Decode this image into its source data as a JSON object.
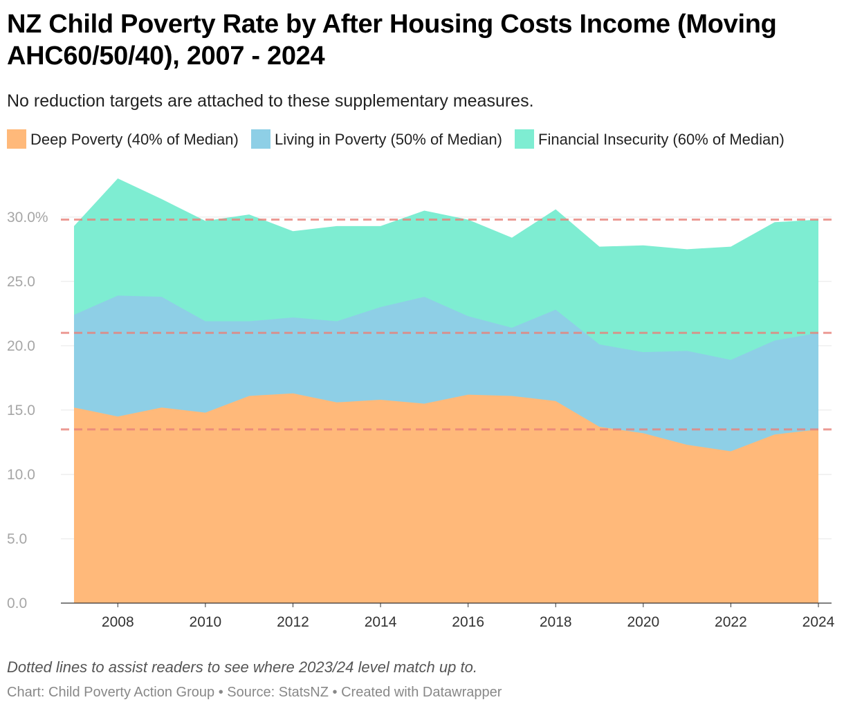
{
  "header": {
    "title": "NZ Child Poverty Rate by After Housing Costs Income (Moving AHC60/50/40), 2007 - 2024",
    "subtitle": "No reduction targets are attached to these supplementary measures."
  },
  "legend": [
    {
      "label": "Deep Poverty (40% of Median)",
      "color": "#ffb97a"
    },
    {
      "label": "Living in Poverty (50% of Median)",
      "color": "#8ecfe6"
    },
    {
      "label": "Financial Insecurity (60% of Median)",
      "color": "#7eedd2"
    }
  ],
  "chart_data": {
    "type": "area",
    "title": "NZ Child Poverty Rate by After Housing Costs Income (Moving AHC60/50/40), 2007 - 2024",
    "subtitle": "No reduction targets are attached to these supplementary measures.",
    "x": [
      2007,
      2008,
      2009,
      2010,
      2011,
      2012,
      2013,
      2014,
      2015,
      2016,
      2017,
      2018,
      2019,
      2020,
      2021,
      2022,
      2023,
      2024
    ],
    "series": [
      {
        "name": "Deep Poverty (40% of Median)",
        "color": "#ffb97a",
        "values": [
          15.2,
          14.5,
          15.2,
          14.8,
          16.1,
          16.3,
          15.6,
          15.8,
          15.5,
          16.2,
          16.1,
          15.7,
          13.7,
          13.2,
          12.3,
          11.8,
          13.1,
          13.5
        ]
      },
      {
        "name": "Living in Poverty (50% of Median)",
        "color": "#8ecfe6",
        "values": [
          22.4,
          23.9,
          23.8,
          21.9,
          21.9,
          22.2,
          21.9,
          23.0,
          23.8,
          22.3,
          21.4,
          22.8,
          20.1,
          19.5,
          19.6,
          18.9,
          20.4,
          21.0
        ]
      },
      {
        "name": "Financial Insecurity (60% of Median)",
        "color": "#7eedd2",
        "values": [
          29.3,
          33.0,
          31.4,
          29.7,
          30.2,
          28.9,
          29.3,
          29.3,
          30.5,
          29.8,
          28.4,
          30.6,
          27.7,
          27.8,
          27.5,
          27.7,
          29.6,
          29.8
        ]
      }
    ],
    "reference_lines": [
      29.8,
      21.0,
      13.5
    ],
    "reference_line_color": "#e8827a",
    "ylim": [
      0,
      33
    ],
    "xlim": [
      2006.7,
      2024.3
    ],
    "y_ticks": [
      0,
      5,
      10,
      15,
      20,
      25,
      30
    ],
    "y_tick_labels": [
      "0.0",
      "5.0",
      "10.0",
      "15.0",
      "20.0",
      "25.0",
      "30.0%"
    ],
    "x_ticks": [
      2008,
      2010,
      2012,
      2014,
      2016,
      2018,
      2020,
      2022,
      2024
    ],
    "x_tick_labels": [
      "2008",
      "2010",
      "2012",
      "2014",
      "2016",
      "2018",
      "2020",
      "2022",
      "2024"
    ],
    "grid": true,
    "legend_position": "top-left"
  },
  "footer": {
    "note": "Dotted lines to assist readers to see where 2023/24 level match up to.",
    "credits": "Chart: Child Poverty Action Group • Source: StatsNZ • Created with Datawrapper"
  }
}
